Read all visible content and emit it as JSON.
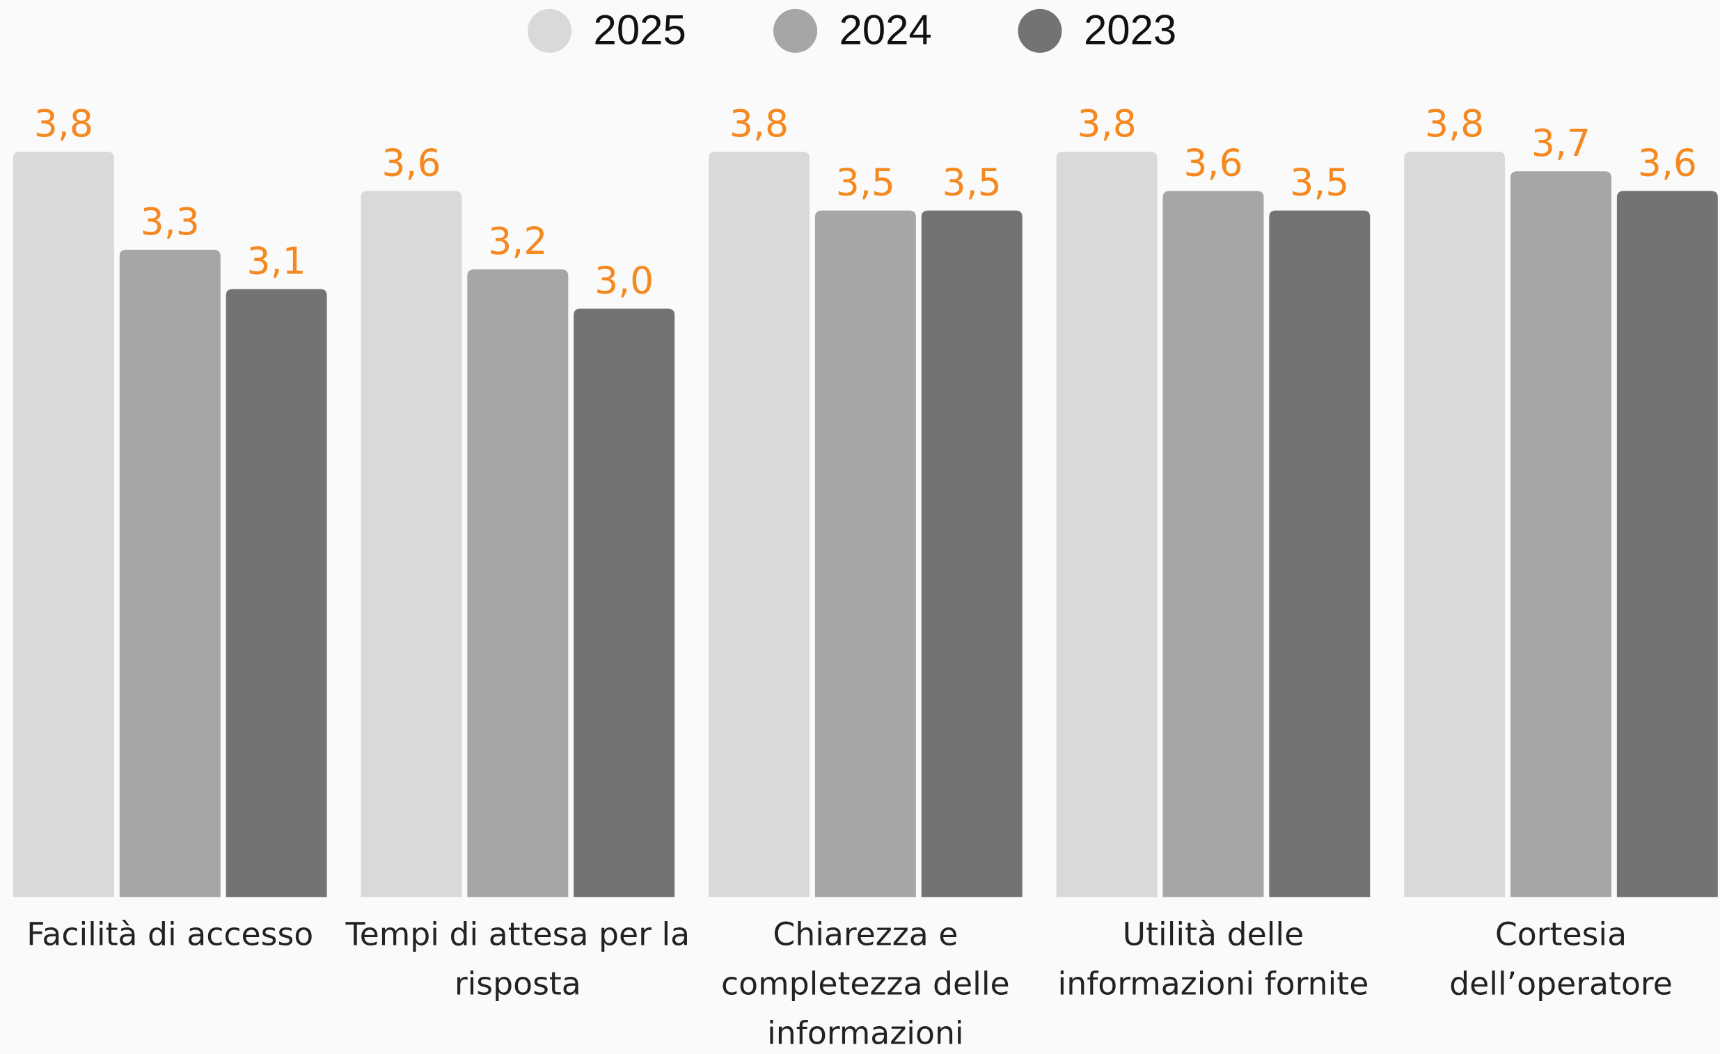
{
  "chart_data": {
    "type": "bar",
    "categories": [
      "Facilità di accesso",
      "Tempi di attesa per la risposta",
      "Chiarezza e completezza delle informazioni",
      "Utilità delle informazioni fornite",
      "Cortesia dell’operatore"
    ],
    "series": [
      {
        "name": "2025",
        "color": "#d9d9d9",
        "values": [
          3.8,
          3.6,
          3.8,
          3.8,
          3.8
        ],
        "value_labels": [
          "3,8",
          "3,6",
          "3,8",
          "3,8",
          "3,8"
        ]
      },
      {
        "name": "2024",
        "color": "#a6a6a6",
        "values": [
          3.3,
          3.2,
          3.5,
          3.6,
          3.7
        ],
        "value_labels": [
          "3,3",
          "3,2",
          "3,5",
          "3,6",
          "3,7"
        ]
      },
      {
        "name": "2023",
        "color": "#737373",
        "values": [
          3.1,
          3.0,
          3.5,
          3.5,
          3.6
        ],
        "value_labels": [
          "3,1",
          "3,0",
          "3,5",
          "3,5",
          "3,6"
        ]
      }
    ],
    "ylim": [
      0,
      4.5
    ],
    "legend": "top"
  }
}
